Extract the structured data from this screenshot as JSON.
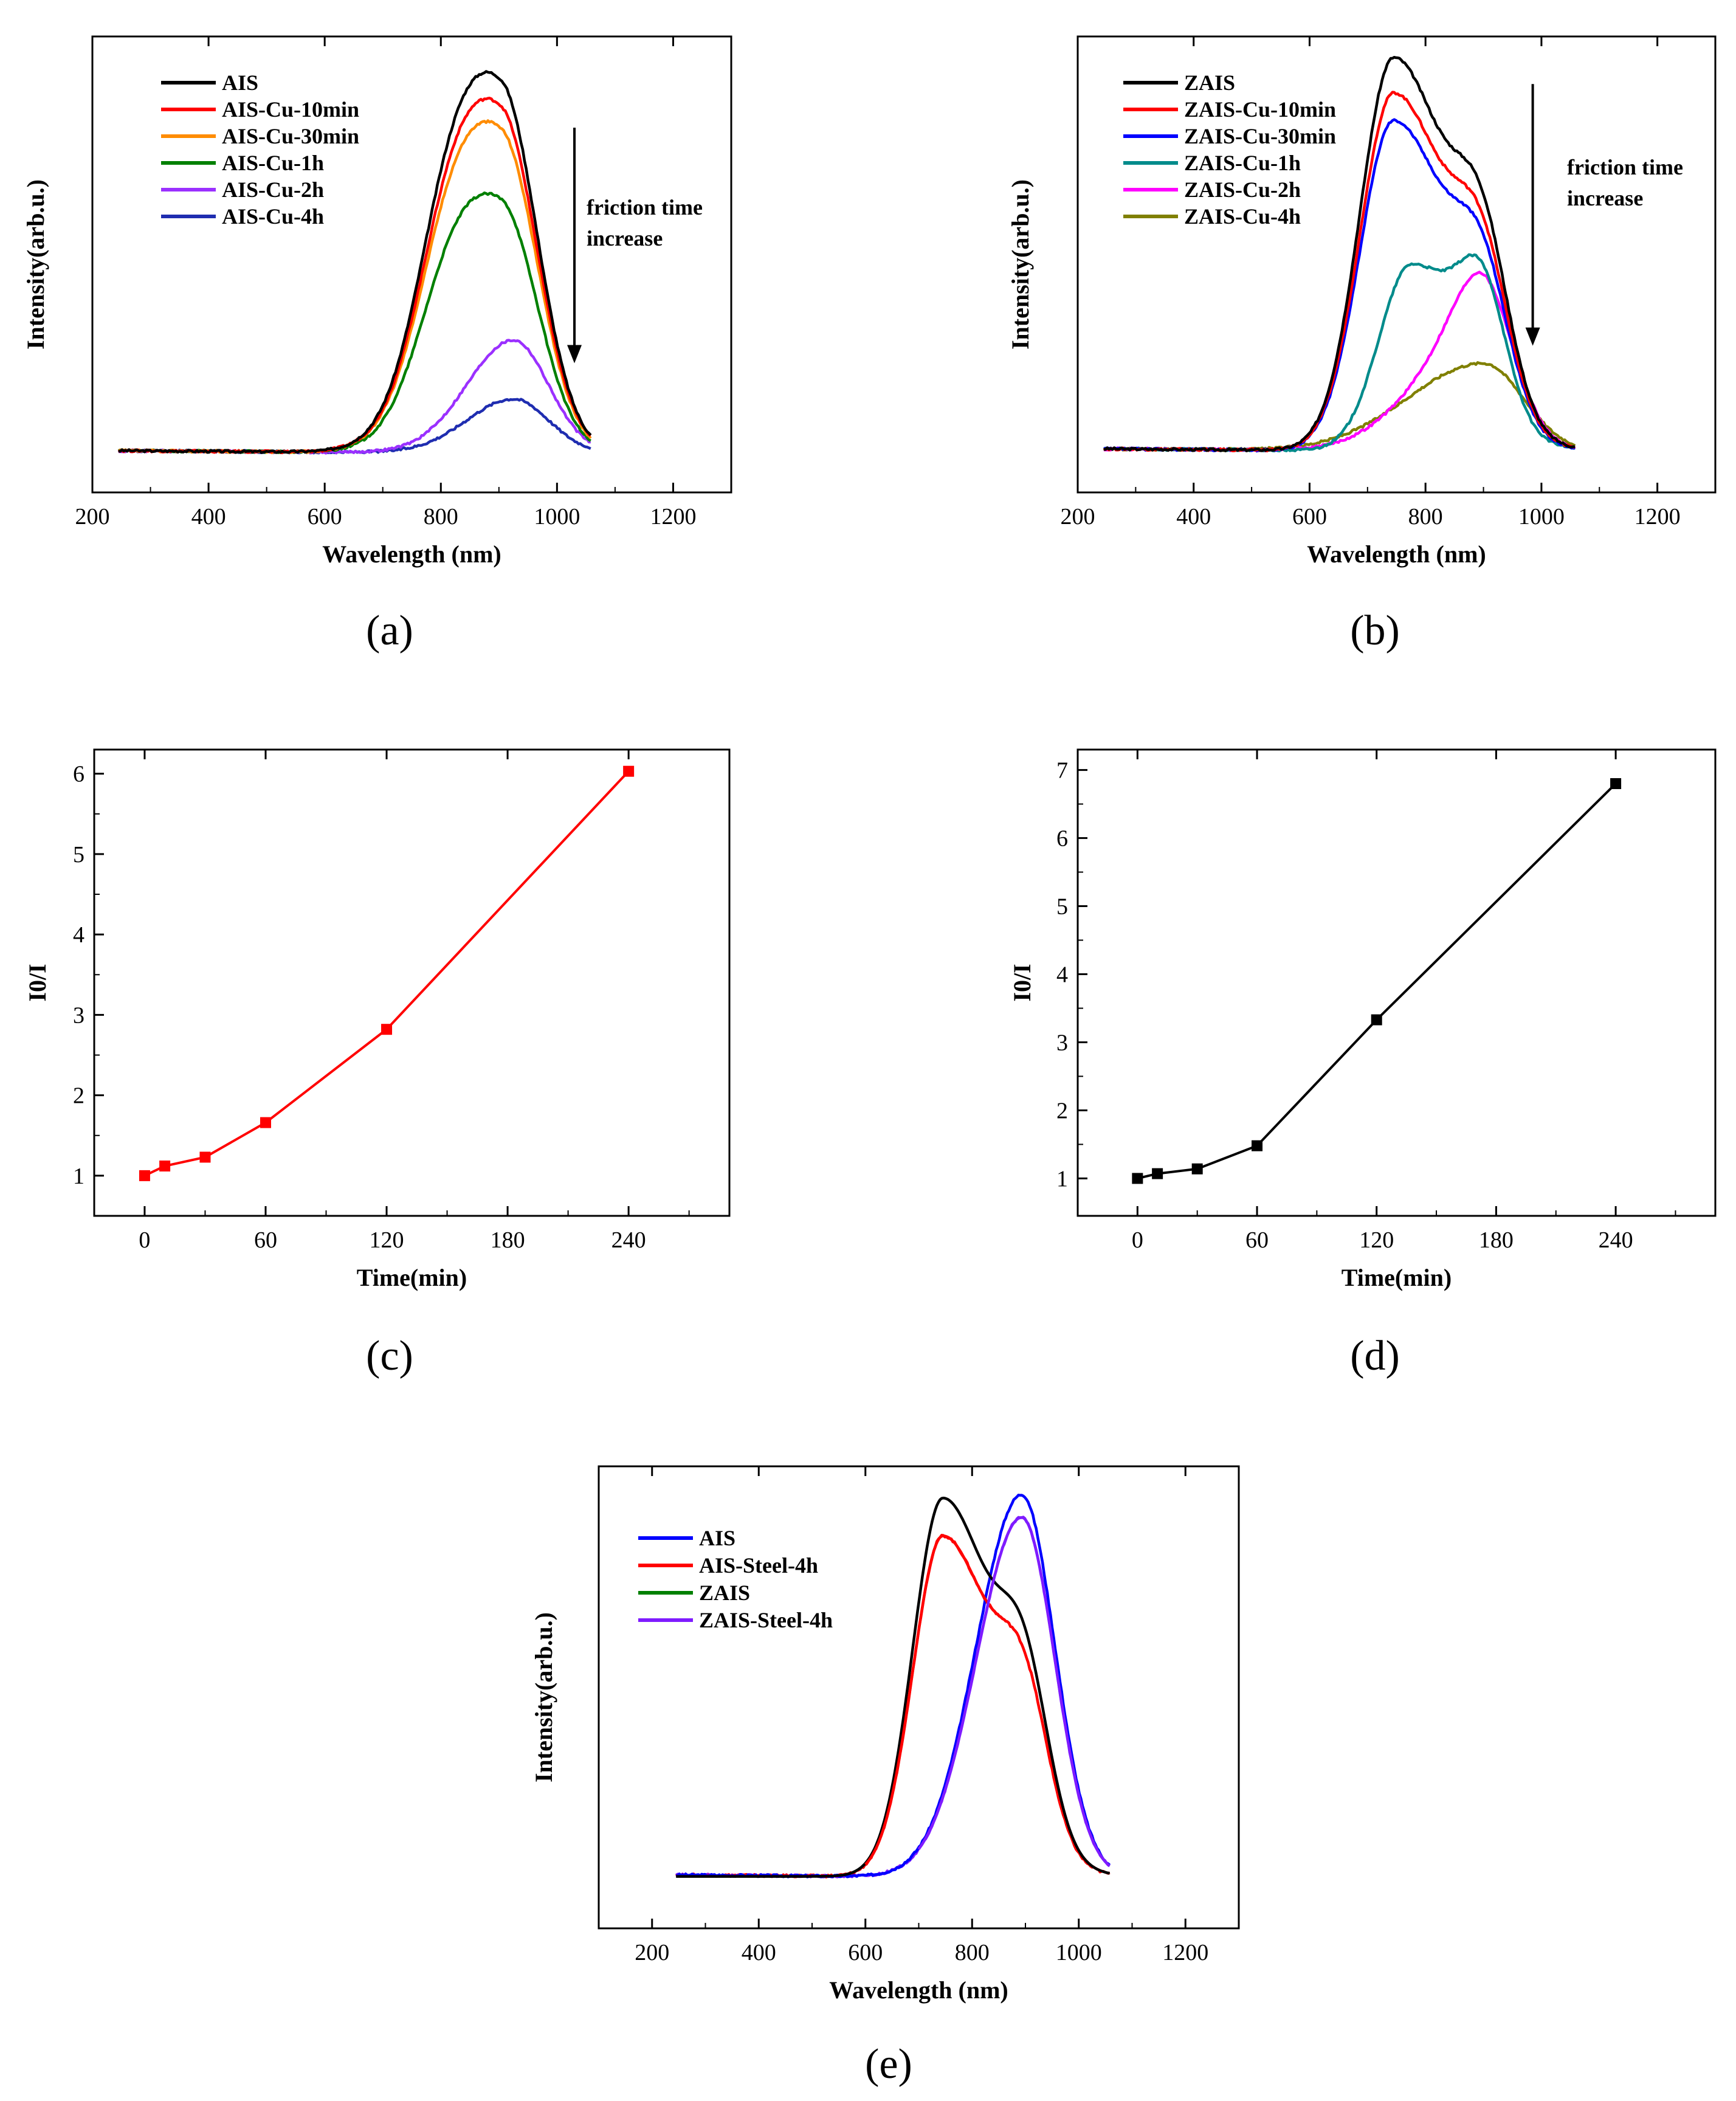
{
  "figure_labels": [
    "(a)",
    "(b)",
    "(c)",
    "(d)",
    "(e)"
  ],
  "colors": {
    "black": "#000000",
    "red": "#ff0000",
    "orange": "#ff8c00",
    "green": "#008000",
    "violet": "#9b30ff",
    "navy": "#1f2db0",
    "blue": "#0000ff",
    "teal": "#008b8b",
    "magenta": "#ff00ff",
    "olive": "#808000",
    "purple": "#7f1bff"
  },
  "chart_data": [
    {
      "id": "a",
      "type": "line",
      "panel_label": "(a)",
      "xlabel": "Wavelength (nm)",
      "ylabel": "Intensity(arb.u.)",
      "xlim": [
        200,
        1300
      ],
      "ylim": [
        -0.1,
        1.1
      ],
      "xticks": [
        200,
        400,
        600,
        800,
        1000,
        1200
      ],
      "annotation": {
        "lines": [
          "friction time",
          "increase"
        ],
        "arrow_x": 1030,
        "arrow_from": 0.86,
        "arrow_to": 0.24
      },
      "series": [
        {
          "name": "AIS",
          "color": "#000000",
          "peak": 1.0,
          "shape": "ais"
        },
        {
          "name": "AIS-Cu-10min",
          "color": "#ff0000",
          "peak": 0.93,
          "shape": "ais"
        },
        {
          "name": "AIS-Cu-30min",
          "color": "#ff8c00",
          "peak": 0.87,
          "shape": "ais"
        },
        {
          "name": "AIS-Cu-1h",
          "color": "#008000",
          "peak": 0.68,
          "shape": "ais"
        },
        {
          "name": "AIS-Cu-2h",
          "color": "#9b30ff",
          "peak": 0.295,
          "shape": "ais_late"
        },
        {
          "name": "AIS-Cu-4h",
          "color": "#1f2db0",
          "peak": 0.14,
          "shape": "ais_late"
        }
      ]
    },
    {
      "id": "b",
      "type": "line",
      "panel_label": "(b)",
      "xlabel": "Wavelength (nm)",
      "ylabel": "Intensity(arb.u.)",
      "xlim": [
        200,
        1300
      ],
      "ylim": [
        -0.1,
        1.05
      ],
      "xticks": [
        200,
        400,
        600,
        800,
        1000,
        1200
      ],
      "annotation": {
        "lines": [
          "friction time",
          "increase"
        ],
        "arrow_x": 985,
        "arrow_from": 0.93,
        "arrow_to": 0.27
      },
      "series": [
        {
          "name": "ZAIS",
          "color": "#000000",
          "scale": 1.0,
          "shape": "zais"
        },
        {
          "name": "ZAIS-Cu-10min",
          "color": "#ff0000",
          "scale": 0.91,
          "shape": "zais"
        },
        {
          "name": "ZAIS-Cu-30min",
          "color": "#0000ff",
          "scale": 0.84,
          "shape": "zais"
        },
        {
          "name": "ZAIS-Cu-1h",
          "color": "#008b8b",
          "scale": 0.6,
          "shape": "zais_1h"
        },
        {
          "name": "ZAIS-Cu-2h",
          "color": "#ff00ff",
          "peak": 0.45,
          "shape": "zais_2h"
        },
        {
          "name": "ZAIS-Cu-4h",
          "color": "#808000",
          "peak": 0.22,
          "shape": "zais_4h"
        }
      ]
    },
    {
      "id": "c",
      "type": "line",
      "panel_label": "(c)",
      "xlabel": "Time(min)",
      "ylabel": "I0/I",
      "xlim": [
        -25,
        290
      ],
      "ylim": [
        0.5,
        6.3
      ],
      "xticks": [
        0,
        60,
        120,
        180,
        240
      ],
      "yticks": [
        1,
        2,
        3,
        4,
        5,
        6
      ],
      "series": [
        {
          "name": "I0/I",
          "color": "#ff0000",
          "x": [
            0,
            10,
            30,
            60,
            120,
            240
          ],
          "y": [
            1.0,
            1.12,
            1.23,
            1.66,
            2.82,
            6.03
          ]
        }
      ]
    },
    {
      "id": "d",
      "type": "line",
      "panel_label": "(d)",
      "xlabel": "Time(min)",
      "ylabel": "I0/I",
      "xlim": [
        -30,
        290
      ],
      "ylim": [
        0.45,
        7.3
      ],
      "xticks": [
        0,
        60,
        120,
        180,
        240
      ],
      "yticks": [
        1,
        2,
        3,
        4,
        5,
        6,
        7
      ],
      "series": [
        {
          "name": "I0/I",
          "color": "#000000",
          "x": [
            0,
            10,
            30,
            60,
            120,
            240
          ],
          "y": [
            1.0,
            1.07,
            1.14,
            1.48,
            3.33,
            6.8
          ]
        }
      ]
    },
    {
      "id": "e",
      "type": "line",
      "panel_label": "(e)",
      "xlabel": "Wavelength (nm)",
      "ylabel": "Intensity(arb.u.)",
      "xlim": [
        100,
        1300
      ],
      "ylim": [
        -0.13,
        1.08
      ],
      "xticks": [
        200,
        400,
        600,
        800,
        1000,
        1200
      ],
      "series": [
        {
          "name": "AIS",
          "color": "#0000ff",
          "peak": 1.0,
          "shape": "e_ais"
        },
        {
          "name": "AIS-Steel-4h",
          "color": "#ff0000",
          "scale": 0.9,
          "shape": "e_zais"
        },
        {
          "name": "ZAIS",
          "color": "#008000",
          "scale": 1.0,
          "shape": "e_zais_gone"
        },
        {
          "name": "ZAIS-Steel-4h",
          "color": "#7f1bff",
          "peak": 0.94,
          "shape": "e_ais"
        }
      ],
      "overlay_note": "black trace = ZAIS (drawn over green)"
    }
  ]
}
